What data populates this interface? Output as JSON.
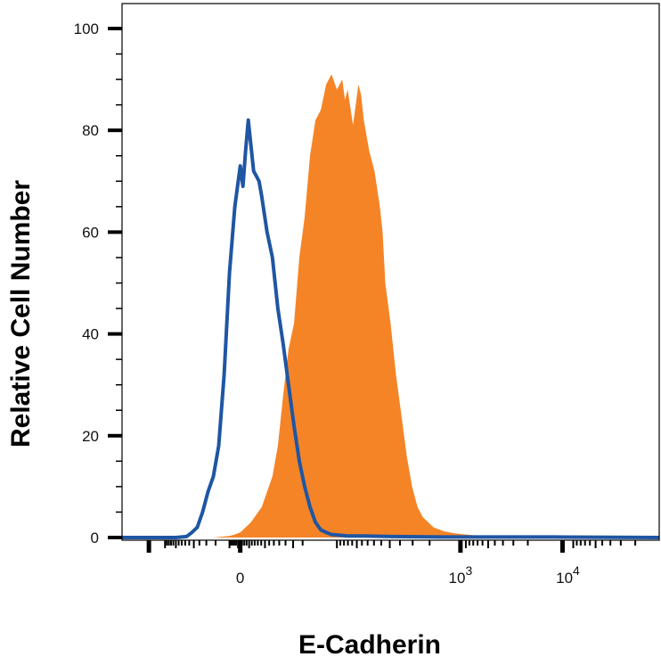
{
  "chart_data": {
    "type": "area",
    "xlabel": "E-Cadherin",
    "ylabel": "Relative Cell Number",
    "ylim": [
      0,
      100
    ],
    "y_ticks": [
      0,
      20,
      40,
      60,
      80,
      100
    ],
    "y_tick_labels": [
      "0",
      "20",
      "40",
      "60",
      "80",
      "100"
    ],
    "x_scale": "biexponential",
    "x_tick_labels": [
      {
        "base": "0",
        "exp": ""
      },
      {
        "base": "10",
        "exp": "3"
      },
      {
        "base": "10",
        "exp": "4"
      }
    ],
    "grid": false,
    "legend": "none",
    "colors": {
      "filled": "#F58427",
      "outline": "#1F56A3"
    },
    "series": [
      {
        "style": "filled",
        "x": [
          0.17,
          0.18,
          0.19,
          0.2,
          0.21,
          0.22,
          0.24,
          0.26,
          0.28,
          0.29,
          0.3,
          0.31,
          0.32,
          0.33,
          0.34,
          0.35,
          0.36,
          0.37,
          0.38,
          0.39,
          0.4,
          0.41,
          0.415,
          0.42,
          0.43,
          0.435,
          0.44,
          0.445,
          0.45,
          0.46,
          0.47,
          0.48,
          0.485,
          0.49,
          0.5,
          0.51,
          0.52,
          0.53,
          0.54,
          0.55,
          0.56,
          0.57,
          0.58,
          0.59,
          0.6,
          0.61,
          0.62,
          0.64,
          0.66,
          0.68,
          0.7,
          0.72,
          0.76,
          0.8,
          0.85,
          0.9,
          1.0
        ],
        "values": [
          0,
          0.1,
          0.2,
          0.3,
          0.6,
          1,
          3,
          6,
          12,
          18,
          28,
          37,
          42,
          55,
          63,
          75,
          82,
          84,
          89,
          91,
          88,
          90,
          86,
          88,
          81,
          85,
          89,
          87,
          82,
          76,
          72,
          65,
          60,
          50,
          42,
          32,
          24,
          16,
          10,
          6,
          4,
          3,
          2,
          1.6,
          1.2,
          1,
          0.8,
          0.6,
          0.4,
          0.3,
          0.2,
          0.1,
          0.1,
          0.1,
          0,
          0,
          0
        ]
      },
      {
        "style": "outline",
        "x": [
          0.0,
          0.05,
          0.1,
          0.12,
          0.13,
          0.14,
          0.15,
          0.16,
          0.17,
          0.18,
          0.19,
          0.2,
          0.21,
          0.22,
          0.225,
          0.23,
          0.235,
          0.24,
          0.245,
          0.25,
          0.255,
          0.26,
          0.27,
          0.28,
          0.29,
          0.3,
          0.31,
          0.32,
          0.33,
          0.34,
          0.35,
          0.36,
          0.37,
          0.38,
          0.39,
          0.4,
          0.42,
          0.45,
          0.5,
          0.6,
          0.8,
          1.0
        ],
        "values": [
          0,
          0,
          0,
          0.2,
          1,
          2,
          5,
          9,
          12,
          18,
          32,
          52,
          65,
          73,
          69,
          76,
          82,
          77,
          72,
          71,
          70,
          67,
          60,
          55,
          45,
          38,
          30,
          22,
          15,
          10,
          6,
          3,
          1.5,
          1,
          0.6,
          0.5,
          0.3,
          0.3,
          0.2,
          0.1,
          0.1,
          0
        ]
      }
    ]
  }
}
